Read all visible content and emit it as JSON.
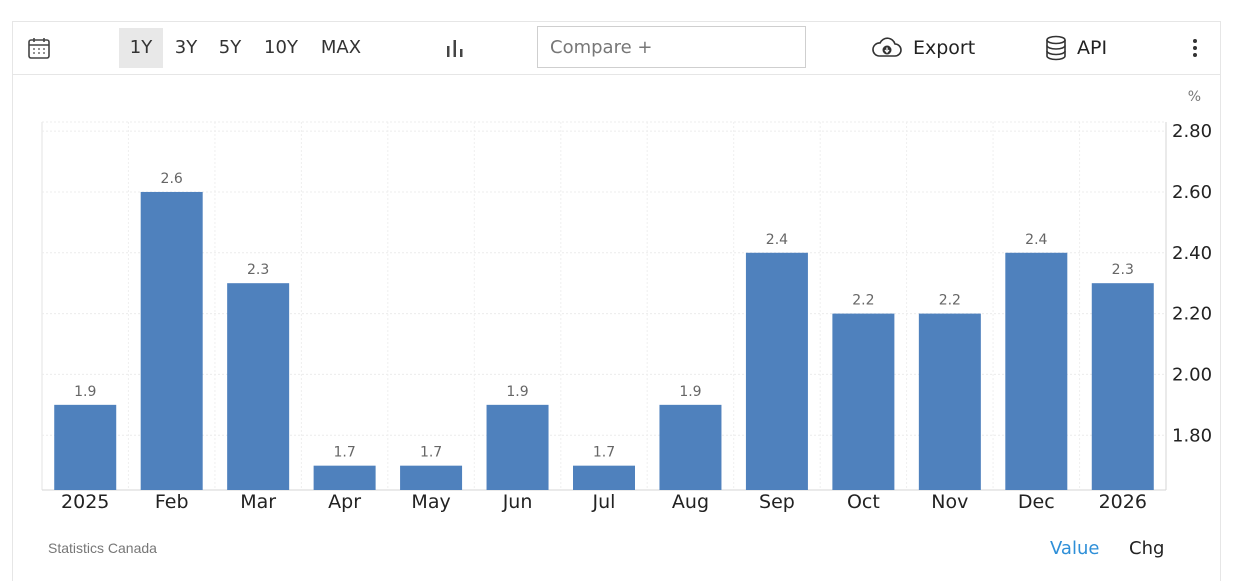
{
  "toolbar": {
    "ranges": [
      "1Y",
      "3Y",
      "5Y",
      "10Y",
      "MAX"
    ],
    "active_range": "1Y",
    "compare_placeholder": "Compare +",
    "export_label": "Export",
    "api_label": "API",
    "icons": {
      "calendar": "calendar-icon",
      "chart_type": "bar-chart-icon",
      "export": "cloud-download-icon",
      "api": "database-icon",
      "more": "more-vertical-icon"
    }
  },
  "chart_data": {
    "type": "bar",
    "categories": [
      "2025",
      "Feb",
      "Mar",
      "Apr",
      "May",
      "Jun",
      "Jul",
      "Aug",
      "Sep",
      "Oct",
      "Nov",
      "Dec",
      "2026"
    ],
    "values": [
      1.9,
      2.6,
      2.3,
      1.7,
      1.7,
      1.9,
      1.7,
      1.9,
      2.4,
      2.2,
      2.2,
      2.4,
      2.3
    ],
    "data_labels": [
      "1.9",
      "2.6",
      "2.3",
      "1.7",
      "1.7",
      "1.9",
      "1.7",
      "1.9",
      "2.4",
      "2.2",
      "2.2",
      "2.4",
      "2.3"
    ],
    "unit": "%",
    "y_ticks": [
      1.8,
      2.0,
      2.2,
      2.4,
      2.6,
      2.8
    ],
    "y_tick_labels": [
      "1.80",
      "2.00",
      "2.20",
      "2.40",
      "2.60",
      "2.80"
    ],
    "ylim": [
      1.62,
      2.83
    ],
    "y_axis_side": "right",
    "grid": true,
    "bar_color": "#4f81bd"
  },
  "footer": {
    "source": "Statistics Canada",
    "value_label": "Value",
    "chg_label": "Chg"
  }
}
